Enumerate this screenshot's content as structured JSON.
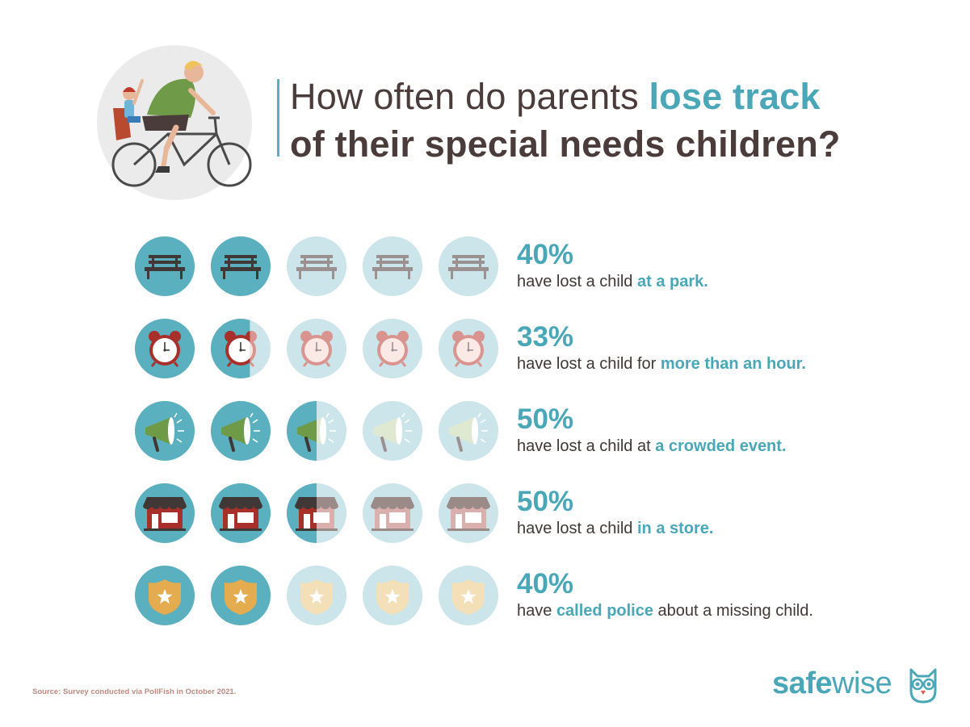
{
  "header": {
    "title_line1_prefix": "How often do parents ",
    "title_line1_highlight": "lose track",
    "title_line2": "of their special needs children?"
  },
  "colors": {
    "accent": "#4aa7b7",
    "icon_full_bg": "#5ab0bf",
    "icon_faded_bg": "#cce5ea",
    "text_dark": "#3f3836"
  },
  "chart_data": {
    "type": "pictograph",
    "icons_per_row": 5,
    "rows": [
      {
        "icon": "bench-icon",
        "value_pct": 40,
        "label": "40%",
        "text_before": "have lost a child ",
        "text_highlight": "at a park.",
        "text_after": ""
      },
      {
        "icon": "alarm-clock-icon",
        "value_pct": 33,
        "label": "33%",
        "text_before": "have lost a child for ",
        "text_highlight": "more than an hour.",
        "text_after": ""
      },
      {
        "icon": "megaphone-icon",
        "value_pct": 50,
        "label": "50%",
        "text_before": "have lost a child at ",
        "text_highlight": "a crowded event.",
        "text_after": ""
      },
      {
        "icon": "store-icon",
        "value_pct": 50,
        "label": "50%",
        "text_before": "have lost a child ",
        "text_highlight": "in a store.",
        "text_after": ""
      },
      {
        "icon": "police-badge-icon",
        "value_pct": 40,
        "label": "40%",
        "text_before": "have ",
        "text_highlight": "called police",
        "text_after": " about a missing child."
      }
    ]
  },
  "footer": {
    "source": "Source: Survey conducted via PollFish in October 2021.",
    "brand_bold": "safe",
    "brand_thin": "wise"
  }
}
